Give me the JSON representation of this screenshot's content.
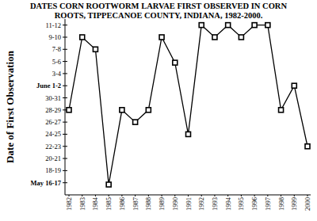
{
  "chart_data": {
    "type": "line",
    "title": "DATES CORN ROOTWORM LARVAE FIRST OBSERVED IN CORN ROOTS, TIPPECANOE COUNTY, INDIANA, 1982-2000.",
    "y_label": "Date of First Observation",
    "categories": [
      "1982",
      "1983",
      "1984",
      "1985",
      "1986",
      "1987",
      "1988",
      "1989",
      "1990",
      "1991",
      "1992",
      "1993",
      "1994",
      "1995",
      "1996",
      "1997",
      "1998",
      "1999",
      "2000"
    ],
    "values": [
      28.5,
      40.5,
      38.5,
      16.2,
      28.5,
      26.5,
      28.5,
      40.5,
      36.3,
      24.5,
      42.5,
      40.5,
      42.5,
      40.5,
      42.5,
      42.5,
      28.5,
      32.5,
      22.5
    ],
    "color": "#000000",
    "marker": "square",
    "ylim": [
      14.5,
      43.5
    ],
    "yticks": [
      {
        "value": 16.5,
        "label": "May 16-17"
      },
      {
        "value": 18.5,
        "label": "18-19"
      },
      {
        "value": 20.5,
        "label": "20-21"
      },
      {
        "value": 22.5,
        "label": "22-23"
      },
      {
        "value": 24.5,
        "label": "24-25"
      },
      {
        "value": 26.5,
        "label": "26-27"
      },
      {
        "value": 28.5,
        "label": "28-29"
      },
      {
        "value": 30.5,
        "label": "30-31"
      },
      {
        "value": 32.5,
        "label": "June 1-2"
      },
      {
        "value": 34.5,
        "label": "3-4"
      },
      {
        "value": 36.5,
        "label": "5-6"
      },
      {
        "value": 38.5,
        "label": "7-8"
      },
      {
        "value": 40.5,
        "label": "9-10"
      },
      {
        "value": 42.5,
        "label": "11-12"
      }
    ],
    "grid": false
  }
}
